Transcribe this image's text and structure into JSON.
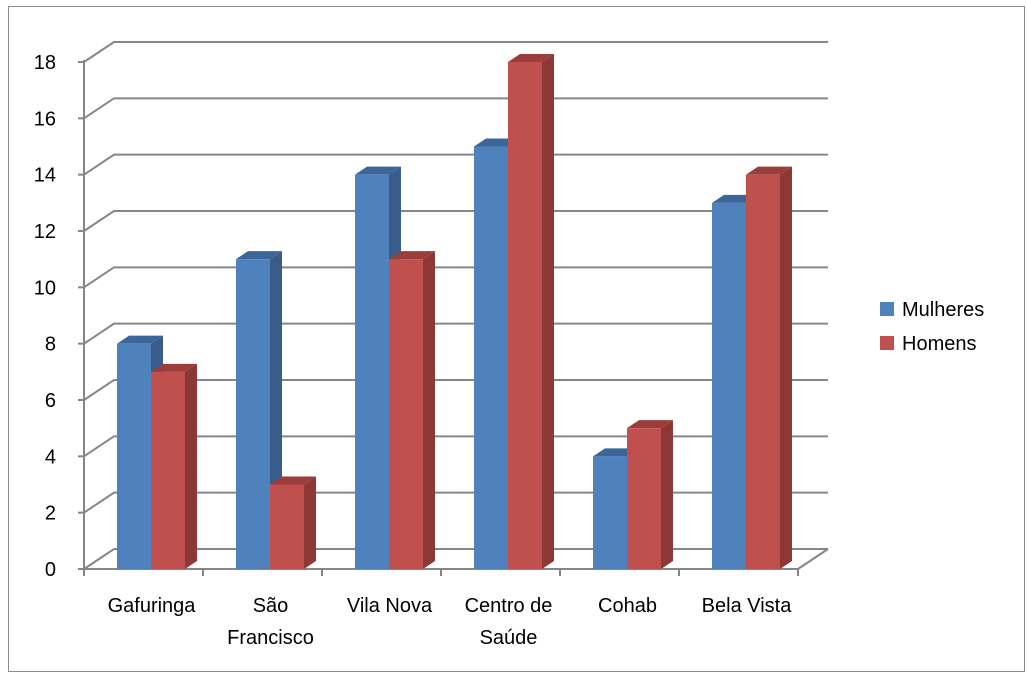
{
  "chart_data": {
    "type": "bar",
    "style": "3d-clustered-column",
    "categories": [
      [
        "Gafuringa"
      ],
      [
        "São",
        "Francisco"
      ],
      [
        "Vila Nova"
      ],
      [
        "Centro de",
        "Saúde"
      ],
      [
        "Cohab"
      ],
      [
        "Bela Vista"
      ]
    ],
    "series": [
      {
        "name": "Mulheres",
        "values": [
          8,
          11,
          14,
          15,
          4,
          13
        ],
        "color": "#4F81BD",
        "side_color": "#385D8A",
        "top_color": "#3C6699"
      },
      {
        "name": "Homens",
        "values": [
          7,
          3,
          11,
          18,
          5,
          14
        ],
        "color": "#C0504D",
        "side_color": "#8C3836",
        "top_color": "#9B3D3A"
      }
    ],
    "y_ticks": [
      "0",
      "2",
      "4",
      "6",
      "8",
      "10",
      "12",
      "14",
      "16",
      "18"
    ],
    "ylim": [
      0,
      18
    ],
    "grid": true,
    "legend_position": "right",
    "title": "",
    "xlabel": "",
    "ylabel": ""
  }
}
